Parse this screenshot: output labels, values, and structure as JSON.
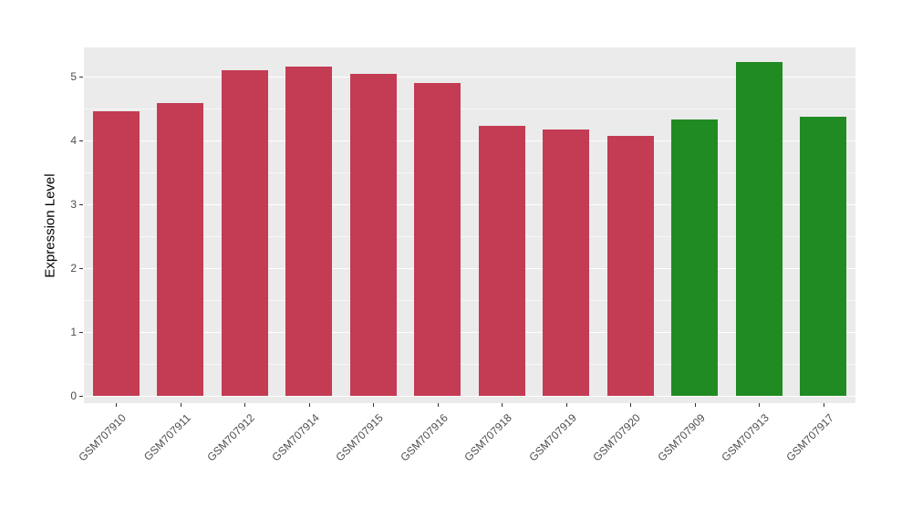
{
  "chart_data": {
    "type": "bar",
    "categories": [
      "GSM707910",
      "GSM707911",
      "GSM707912",
      "GSM707914",
      "GSM707915",
      "GSM707916",
      "GSM707918",
      "GSM707919",
      "GSM707920",
      "GSM707909",
      "GSM707913",
      "GSM707917"
    ],
    "values": [
      4.45,
      4.58,
      5.1,
      5.15,
      5.03,
      4.9,
      4.23,
      4.17,
      4.07,
      4.32,
      5.22,
      4.37
    ],
    "bar_colors": [
      "#C33C54",
      "#C33C54",
      "#C33C54",
      "#C33C54",
      "#C33C54",
      "#C33C54",
      "#C33C54",
      "#C33C54",
      "#C33C54",
      "#208B22",
      "#208B22",
      "#208B22"
    ],
    "title": "",
    "xlabel": "",
    "ylabel": "Expression Level",
    "ylim": [
      0,
      5.45
    ],
    "yticks": [
      0,
      1,
      2,
      3,
      4,
      5
    ],
    "grid": true,
    "legend": "none",
    "panel_bg": "#EBEBEB",
    "grid_color": "#FFFFFF",
    "tick_label_color": "#4D4D4D",
    "axis_title_color": "#000000"
  }
}
